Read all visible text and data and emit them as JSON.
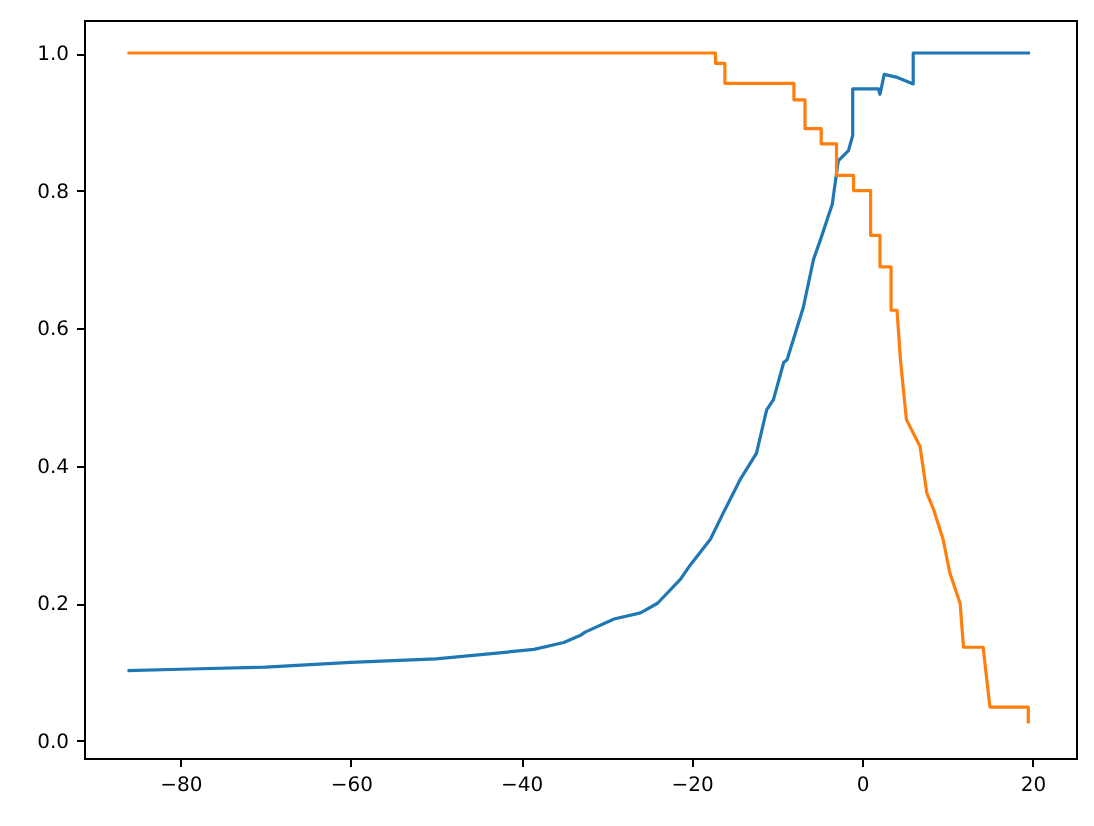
{
  "chart_data": {
    "type": "line",
    "xlim": [
      -91.3,
      25.1
    ],
    "ylim": [
      -0.025,
      1.048
    ],
    "xticks": [
      {
        "value": -80,
        "label": "−80"
      },
      {
        "value": -60,
        "label": "−60"
      },
      {
        "value": -40,
        "label": "−40"
      },
      {
        "value": -20,
        "label": "−20"
      },
      0,
      20
    ],
    "yticks": [
      {
        "value": 0,
        "label": "0.0"
      },
      {
        "value": 0.2,
        "label": "0.2"
      },
      {
        "value": 0.4,
        "label": "0.4"
      },
      {
        "value": 0.6,
        "label": "0.6"
      },
      {
        "value": 0.8,
        "label": "0.8"
      },
      {
        "value": 1,
        "label": "1.0"
      }
    ],
    "grid": false,
    "line_style": "solid",
    "marker": "none",
    "series": [
      {
        "color": "#1f77b4",
        "x": [
          -86.2,
          -80,
          -70,
          -60,
          -50,
          -40,
          -38.5,
          -35,
          -33.1,
          -32.5,
          -29.1,
          -26,
          -24,
          -21.3,
          -20.2,
          -17.8,
          -16.3,
          -14.3,
          -12.4,
          -11.2,
          -10.4,
          -9.2,
          -8.8,
          -6.9,
          -5.7,
          -4.9,
          -3.5,
          -2.8,
          -1.6,
          -1.1,
          -1.1,
          1.9,
          2.1,
          2.6,
          4.0,
          6.0,
          6.0,
          19.7
        ],
        "values": [
          0.102,
          0.104,
          0.107,
          0.114,
          0.119,
          0.131,
          0.133,
          0.143,
          0.153,
          0.158,
          0.177,
          0.186,
          0.2,
          0.235,
          0.255,
          0.293,
          0.331,
          0.38,
          0.418,
          0.481,
          0.496,
          0.55,
          0.554,
          0.63,
          0.7,
          0.728,
          0.78,
          0.843,
          0.858,
          0.88,
          0.948,
          0.948,
          0.94,
          0.969,
          0.965,
          0.955,
          1.0,
          1.0
        ]
      },
      {
        "color": "#ff7f0e",
        "x": [
          -86.2,
          -17.2,
          -17.2,
          -16.1,
          -16.1,
          -8.0,
          -8.0,
          -6.7,
          -6.7,
          -4.8,
          -4.8,
          -3.0,
          -3.0,
          -1.0,
          -1.0,
          1.0,
          1.0,
          2.1,
          2.1,
          3.4,
          3.4,
          4.1,
          4.5,
          5.2,
          6.8,
          7.6,
          8.4,
          9.5,
          10.3,
          11.5,
          11.9,
          14.2,
          15.0,
          19.5,
          19.5
        ],
        "values": [
          1.0,
          1.0,
          0.985,
          0.985,
          0.956,
          0.956,
          0.932,
          0.932,
          0.89,
          0.89,
          0.868,
          0.868,
          0.822,
          0.822,
          0.8,
          0.8,
          0.735,
          0.735,
          0.689,
          0.689,
          0.626,
          0.626,
          0.554,
          0.467,
          0.428,
          0.36,
          0.336,
          0.293,
          0.244,
          0.2,
          0.136,
          0.136,
          0.049,
          0.049,
          0.025
        ]
      }
    ]
  }
}
